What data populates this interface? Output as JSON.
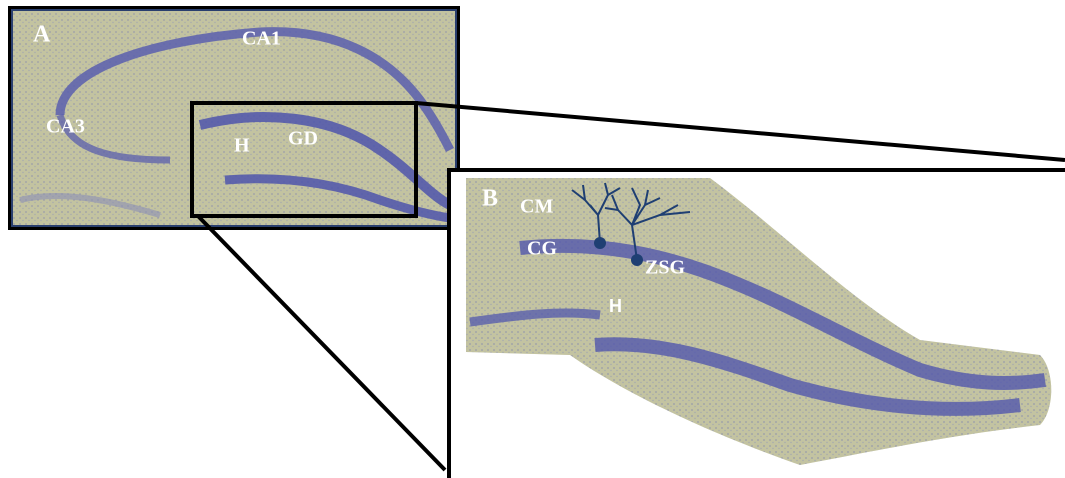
{
  "panel_a": {
    "label": "A",
    "regions": [
      "CA1",
      "CA3",
      "H",
      "GD"
    ]
  },
  "panel_b": {
    "label": "B",
    "regions": [
      "CM",
      "CG",
      "ZSG",
      "H"
    ]
  }
}
